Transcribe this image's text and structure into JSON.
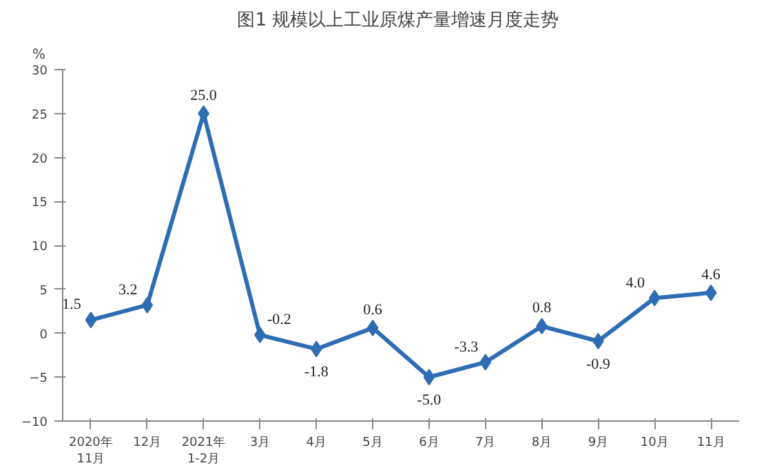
{
  "chart_data": {
    "type": "line",
    "title": "图1  规模以上工业原煤产量增速月度走势",
    "ylabel": "%",
    "categories": [
      "2020年\n11月",
      "12月",
      "2021年\n1-2月",
      "3月",
      "4月",
      "5月",
      "6月",
      "7月",
      "8月",
      "9月",
      "10月",
      "11月"
    ],
    "series": [
      {
        "color": "#2e6db4",
        "values": [
          1.5,
          3.2,
          25.0,
          -0.2,
          -1.8,
          0.6,
          -5.0,
          -3.3,
          0.8,
          -0.9,
          4.0,
          4.6
        ],
        "value_labels": [
          "1.5",
          "3.2",
          "25.0",
          "-0.2",
          "-1.8",
          "0.6",
          "-5.0",
          "-3.3",
          "0.8",
          "-0.9",
          "4.0",
          "4.6"
        ]
      }
    ],
    "ylim": [
      -10,
      30
    ],
    "yticks": [
      -10,
      -5,
      0,
      5,
      10,
      15,
      20,
      25,
      30
    ],
    "marker": "diamond",
    "line_style": "solid",
    "grid": false
  }
}
